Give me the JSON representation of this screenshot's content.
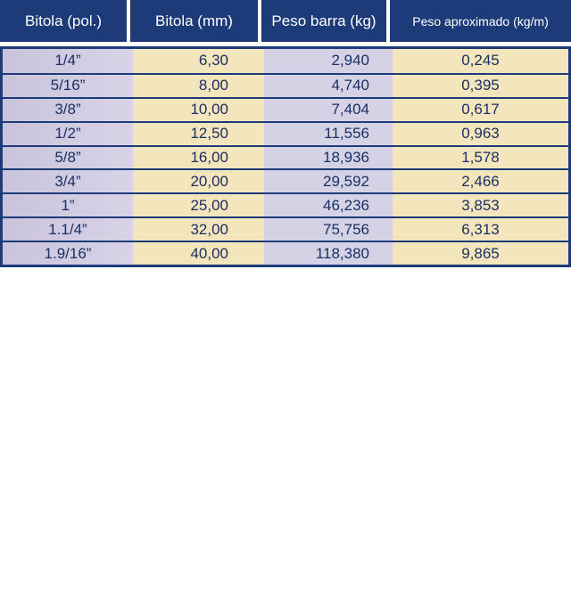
{
  "table": {
    "headers": [
      "Bitola (pol.)",
      "Bitola (mm)",
      "Peso barra (kg)",
      "Peso aproximado (kg/m)"
    ],
    "rows": [
      [
        "1/4”",
        "6,30",
        "2,940",
        "0,245"
      ],
      [
        "5/16”",
        "8,00",
        "4,740",
        "0,395"
      ],
      [
        "3/8”",
        "10,00",
        "7,404",
        "0,617"
      ],
      [
        "1/2”",
        "12,50",
        "11,556",
        "0,963"
      ],
      [
        "5/8”",
        "16,00",
        "18,936",
        "1,578"
      ],
      [
        "3/4”",
        "20,00",
        "29,592",
        "2,466"
      ],
      [
        "1”",
        "25,00",
        "46,236",
        "3,853"
      ],
      [
        "1.1/4”",
        "32,00",
        "75,756",
        "6,313"
      ],
      [
        "1.9/16”",
        "40,00",
        "118,380",
        "9,865"
      ]
    ]
  },
  "colors": {
    "header_bg": "#1c3b78",
    "header_text": "#ffffff",
    "col_lavender": "#d6d2e6",
    "col_cream": "#f3e6bd",
    "body_text": "#1a2f63"
  }
}
